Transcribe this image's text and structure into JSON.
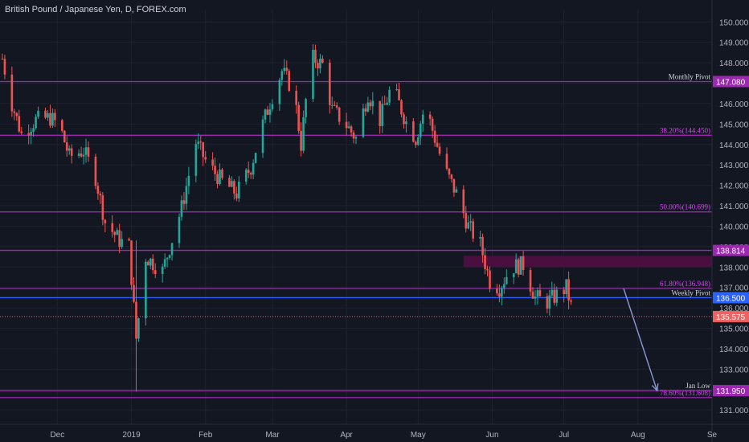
{
  "header": {
    "title": "British Pound / Japanese Yen, D, FOREX.com"
  },
  "colors": {
    "background": "#131722",
    "grid": "#1e2230",
    "axis_text": "#b2b5be",
    "up_candle": "#26a69a",
    "down_candle": "#ef5350",
    "fib_line": "#9c27b0",
    "fib_text": "#e040fb",
    "pivot_blue": "#2962ff",
    "price_tag": "#f06262",
    "zone": "#4a0f3f",
    "arrow": "#8a9bd6",
    "label_white": "#d1d4dc"
  },
  "chart_data": {
    "type": "candlestick",
    "ylim": [
      130.3,
      150.6
    ],
    "y_ticks": [
      131,
      132,
      133,
      134,
      135,
      136,
      137,
      138,
      139,
      140,
      141,
      142,
      143,
      144,
      145,
      146,
      147,
      148,
      149,
      150
    ],
    "y_tick_labels": [
      "131.000",
      "132.000",
      "133.000",
      "134.000",
      "135.000",
      "136.000",
      "137.000",
      "138.000",
      "139.000",
      "140.000",
      "141.000",
      "142.000",
      "143.000",
      "144.000",
      "145.000",
      "146.000",
      "147.000",
      "148.000",
      "149.000",
      "150.000"
    ],
    "x_range": [
      "2018-11-07",
      "2019-09-01"
    ],
    "x_ticks": [
      {
        "date": "2018-12-01",
        "label": "Dec"
      },
      {
        "date": "2019-01-01",
        "label": "2019"
      },
      {
        "date": "2019-02-01",
        "label": "Feb"
      },
      {
        "date": "2019-03-01",
        "label": "Mar"
      },
      {
        "date": "2019-04-01",
        "label": "Apr"
      },
      {
        "date": "2019-05-01",
        "label": "May"
      },
      {
        "date": "2019-06-01",
        "label": "Jun"
      },
      {
        "date": "2019-07-01",
        "label": "Jul"
      },
      {
        "date": "2019-08-01",
        "label": "Aug"
      },
      {
        "date": "2019-09-01",
        "label": "Se"
      }
    ],
    "levels": [
      {
        "value": 147.08,
        "label": "Monthly Pivot",
        "tag": "147.080",
        "style": "fib",
        "label_color": "white"
      },
      {
        "value": 144.45,
        "label": "38.20%(144.450)",
        "tag": "",
        "style": "fib",
        "label_color": "fib"
      },
      {
        "value": 140.699,
        "label": "50.00%(140.699)",
        "tag": "",
        "style": "fib",
        "label_color": "fib"
      },
      {
        "value": 138.814,
        "label": "",
        "tag": "138.814",
        "style": "fib",
        "label_color": "fib"
      },
      {
        "value": 136.948,
        "label": "61.80%(136.948)",
        "tag": "",
        "style": "fib",
        "label_color": "fib"
      },
      {
        "value": 136.5,
        "label": "Weekly Pivot",
        "tag": "136.500",
        "style": "blue",
        "label_color": "white"
      },
      {
        "value": 131.95,
        "label": "Jan Low",
        "tag": "131.950",
        "style": "fib",
        "label_color": "white"
      },
      {
        "value": 131.608,
        "label": "78.60%(131.608)",
        "tag": "",
        "style": "fib",
        "label_color": "fib"
      }
    ],
    "current_price": {
      "value": 135.575,
      "tag": "135.575"
    },
    "zone": {
      "x_start": "2019-05-20",
      "y_low": 138.0,
      "y_high": 138.55
    },
    "arrow": {
      "from": {
        "date": "2019-07-26",
        "value": 136.95
      },
      "to": {
        "date": "2019-08-09",
        "value": 131.95
      }
    },
    "ohlc_path": [
      {
        "date": "2018-11-08",
        "value": 148.2
      },
      {
        "date": "2018-11-12",
        "value": 146.0
      },
      {
        "date": "2018-11-16",
        "value": 144.5
      },
      {
        "date": "2018-11-22",
        "value": 145.2
      },
      {
        "date": "2018-11-28",
        "value": 145.3
      },
      {
        "date": "2018-12-02",
        "value": 144.9
      },
      {
        "date": "2018-12-06",
        "value": 143.4
      },
      {
        "date": "2018-12-12",
        "value": 143.7
      },
      {
        "date": "2018-12-17",
        "value": 142.4
      },
      {
        "date": "2018-12-21",
        "value": 140.2
      },
      {
        "date": "2018-12-27",
        "value": 139.3
      },
      {
        "date": "2018-12-31",
        "value": 139.0
      },
      {
        "date": "2019-01-03",
        "value": 134.5
      },
      {
        "date": "2019-01-07",
        "value": 138.5
      },
      {
        "date": "2019-01-14",
        "value": 137.8
      },
      {
        "date": "2019-01-22",
        "value": 140.9
      },
      {
        "date": "2019-01-28",
        "value": 144.1
      },
      {
        "date": "2019-02-02",
        "value": 143.0
      },
      {
        "date": "2019-02-08",
        "value": 142.2
      },
      {
        "date": "2019-02-14",
        "value": 141.6
      },
      {
        "date": "2019-02-20",
        "value": 142.9
      },
      {
        "date": "2019-02-25",
        "value": 145.0
      },
      {
        "date": "2019-03-01",
        "value": 146.4
      },
      {
        "date": "2019-03-05",
        "value": 147.6
      },
      {
        "date": "2019-03-10",
        "value": 146.6
      },
      {
        "date": "2019-03-13",
        "value": 144.0
      },
      {
        "date": "2019-03-17",
        "value": 148.3
      },
      {
        "date": "2019-03-22",
        "value": 147.9
      },
      {
        "date": "2019-03-26",
        "value": 145.7
      },
      {
        "date": "2019-03-31",
        "value": 145.1
      },
      {
        "date": "2019-04-05",
        "value": 144.3
      },
      {
        "date": "2019-04-10",
        "value": 146.5
      },
      {
        "date": "2019-04-15",
        "value": 145.2
      },
      {
        "date": "2019-04-20",
        "value": 146.9
      },
      {
        "date": "2019-04-26",
        "value": 145.1
      },
      {
        "date": "2019-04-30",
        "value": 144.3
      },
      {
        "date": "2019-05-04",
        "value": 145.9
      },
      {
        "date": "2019-05-08",
        "value": 144.3
      },
      {
        "date": "2019-05-12",
        "value": 142.8
      },
      {
        "date": "2019-05-17",
        "value": 141.6
      },
      {
        "date": "2019-05-22",
        "value": 140.0
      },
      {
        "date": "2019-05-27",
        "value": 139.1
      },
      {
        "date": "2019-05-31",
        "value": 137.3
      },
      {
        "date": "2019-06-04",
        "value": 137.0
      },
      {
        "date": "2019-06-09",
        "value": 138.0
      },
      {
        "date": "2019-06-14",
        "value": 138.1
      },
      {
        "date": "2019-06-19",
        "value": 136.5
      },
      {
        "date": "2019-06-24",
        "value": 136.3
      },
      {
        "date": "2019-06-29",
        "value": 136.7
      },
      {
        "date": "2019-07-02",
        "value": 137.0
      },
      {
        "date": "2019-07-05",
        "value": 135.6
      }
    ]
  }
}
